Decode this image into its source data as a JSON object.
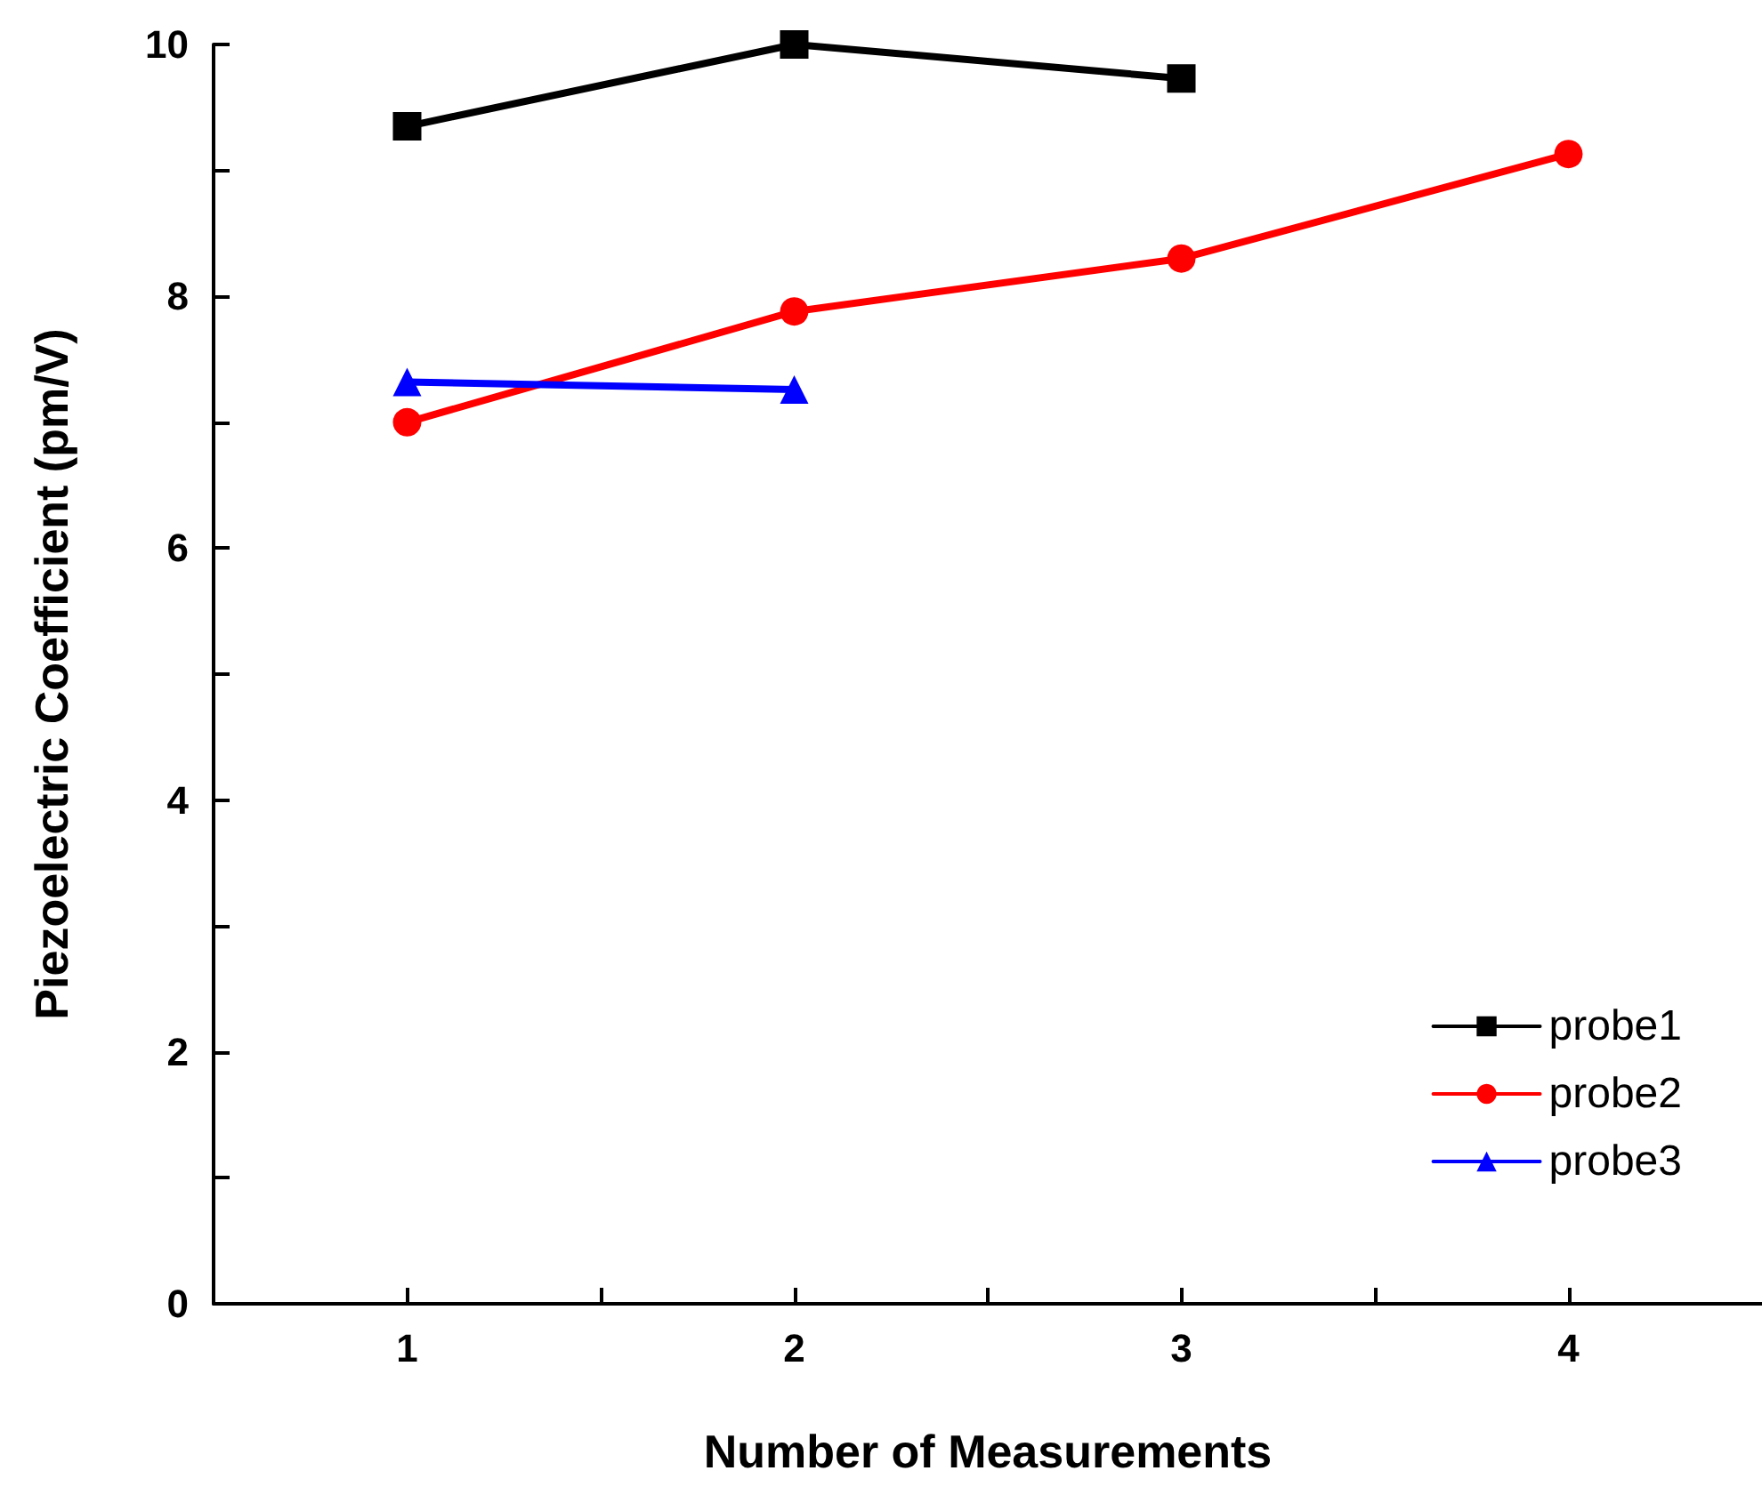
{
  "chart_data": {
    "type": "line",
    "xlabel": "Number of Measurements",
    "ylabel": "Piezoelectric Coefficient (pm/V)",
    "xlim": [
      0.5,
      4.5
    ],
    "xticks": [
      1,
      {
        "value": 1.5,
        "label": null
      },
      2,
      {
        "value": 2.5,
        "label": null
      },
      3,
      {
        "value": 3.5,
        "label": null
      },
      4
    ],
    "ylim": [
      0,
      10
    ],
    "yticks": [
      0,
      {
        "value": 1,
        "label": null
      },
      2,
      {
        "value": 3,
        "label": null
      },
      4,
      {
        "value": 5,
        "label": null
      },
      6,
      {
        "value": 7,
        "label": null
      },
      8,
      {
        "value": 9,
        "label": null
      },
      10
    ],
    "grid": false,
    "legend": "bottom right",
    "line_style": "solid",
    "series": [
      {
        "name": "probe1",
        "color": "#000000",
        "marker": "square",
        "x": [
          1,
          2,
          3
        ],
        "values": [
          9.35,
          10,
          9.73
        ]
      },
      {
        "name": "probe2",
        "color": "#ff0000",
        "marker": "circle",
        "x": [
          1,
          2,
          3,
          4
        ],
        "values": [
          7.0,
          7.88,
          8.3,
          9.13
        ]
      },
      {
        "name": "probe3",
        "color": "#0000ff",
        "marker": "triangle",
        "x": [
          1,
          2
        ],
        "values": [
          7.32,
          7.26
        ]
      }
    ]
  }
}
